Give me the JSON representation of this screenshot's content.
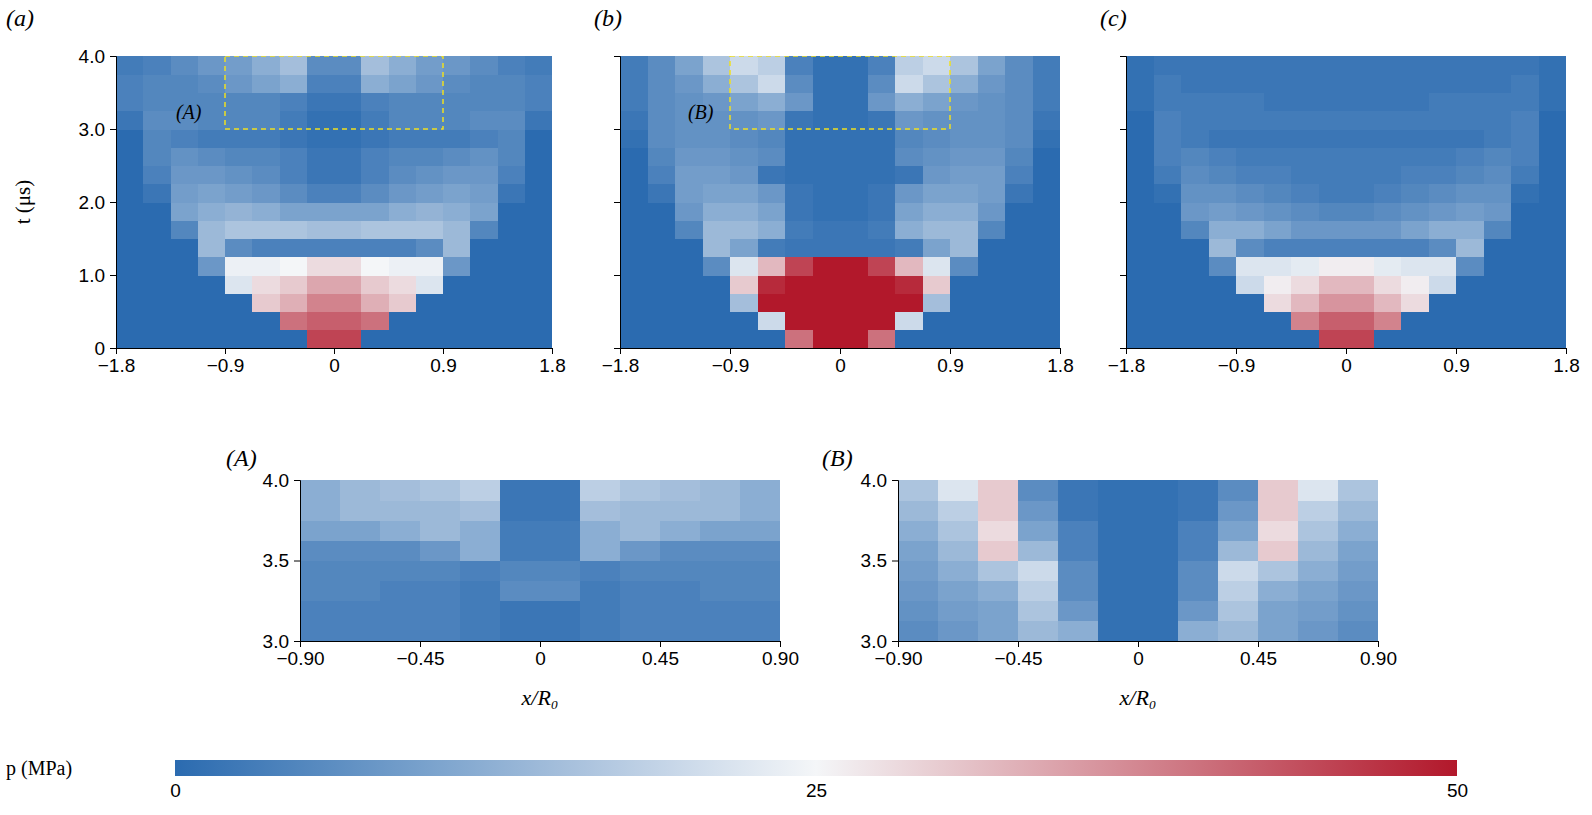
{
  "chart_data": [
    {
      "type": "heatmap",
      "title": "(a)",
      "ylabel": "t (μs)",
      "x_edges": [
        -1.8,
        -1.575,
        -1.35,
        -1.125,
        -0.9,
        -0.675,
        -0.45,
        -0.225,
        0,
        0.225,
        0.45,
        0.675,
        0.9,
        1.125,
        1.35,
        1.575,
        1.8
      ],
      "y_edges": [
        0,
        0.25,
        0.5,
        0.75,
        1.0,
        1.25,
        1.5,
        1.75,
        2.0,
        2.25,
        2.5,
        2.75,
        3.0,
        3.25,
        3.5,
        3.75,
        4.0
      ],
      "values": [
        [
          0,
          0,
          0,
          0,
          0,
          0,
          0,
          45,
          45,
          0,
          0,
          0,
          0,
          0,
          0,
          0
        ],
        [
          0,
          0,
          0,
          0,
          0,
          0,
          40,
          42,
          42,
          40,
          0,
          0,
          0,
          0,
          0,
          0
        ],
        [
          0,
          0,
          0,
          0,
          0,
          30,
          33,
          38,
          38,
          33,
          30,
          0,
          0,
          0,
          0,
          0
        ],
        [
          0,
          0,
          0,
          0,
          22,
          28,
          30,
          34,
          34,
          30,
          28,
          22,
          0,
          0,
          0,
          0
        ],
        [
          0,
          0,
          0,
          8,
          24,
          24,
          25,
          28,
          28,
          25,
          24,
          24,
          8,
          0,
          0,
          0
        ],
        [
          0,
          0,
          0,
          14,
          6,
          4,
          4,
          4,
          4,
          4,
          4,
          6,
          14,
          0,
          0,
          0
        ],
        [
          0,
          0,
          5,
          14,
          16,
          16,
          16,
          15,
          15,
          16,
          16,
          16,
          14,
          5,
          0,
          0
        ],
        [
          0,
          0,
          10,
          12,
          13,
          12,
          10,
          10,
          10,
          10,
          12,
          13,
          12,
          10,
          0,
          0
        ],
        [
          0,
          2,
          9,
          10,
          9,
          8,
          6,
          4,
          4,
          6,
          8,
          9,
          10,
          9,
          2,
          0
        ],
        [
          0,
          4,
          8,
          8,
          7,
          6,
          4,
          2,
          2,
          4,
          6,
          7,
          8,
          8,
          4,
          0
        ],
        [
          0,
          5,
          7,
          6,
          5,
          5,
          4,
          2,
          2,
          4,
          5,
          5,
          6,
          7,
          5,
          0
        ],
        [
          0,
          5,
          4,
          3,
          3,
          3,
          2,
          1,
          1,
          2,
          3,
          3,
          3,
          4,
          5,
          0
        ],
        [
          2,
          6,
          6,
          5,
          5,
          5,
          3,
          1,
          1,
          3,
          5,
          5,
          5,
          6,
          6,
          2
        ],
        [
          4,
          5,
          5,
          5,
          5,
          5,
          4,
          2,
          2,
          4,
          5,
          5,
          5,
          5,
          5,
          4
        ],
        [
          4,
          5,
          5,
          6,
          8,
          10,
          12,
          4,
          4,
          12,
          10,
          8,
          6,
          5,
          5,
          4
        ],
        [
          3,
          4,
          6,
          8,
          9,
          12,
          15,
          6,
          6,
          15,
          12,
          9,
          8,
          6,
          4,
          3
        ]
      ],
      "xlim": [
        -1.8,
        1.8
      ],
      "ylim": [
        0,
        4.0
      ],
      "xticks": [
        {
          "value": -1.8,
          "label": "−1.8"
        },
        {
          "value": -0.9,
          "label": "−0.9"
        },
        0,
        0.9,
        1.8
      ],
      "yticks": [
        0,
        {
          "value": 1,
          "label": "1.0"
        },
        {
          "value": 2,
          "label": "2.0"
        },
        {
          "value": 3,
          "label": "3.0"
        },
        {
          "value": 4,
          "label": "4.0"
        }
      ],
      "annotation": {
        "text": "(A)",
        "x": -1.2,
        "y": 3.2
      },
      "zoom_box": {
        "x": [
          -0.9,
          0.9
        ],
        "y": [
          3.0,
          4.0
        ]
      }
    },
    {
      "type": "heatmap",
      "title": "(b)",
      "tick_labels": "x",
      "x_edges": [
        -1.8,
        -1.575,
        -1.35,
        -1.125,
        -0.9,
        -0.675,
        -0.45,
        -0.225,
        0,
        0.225,
        0.45,
        0.675,
        0.9,
        1.125,
        1.35,
        1.575,
        1.8
      ],
      "y_edges": [
        0,
        0.25,
        0.5,
        0.75,
        1.0,
        1.25,
        1.5,
        1.75,
        2.0,
        2.25,
        2.5,
        2.75,
        3.0,
        3.25,
        3.5,
        3.75,
        4.0
      ],
      "values": [
        [
          0,
          0,
          0,
          0,
          0,
          0,
          40,
          50,
          50,
          40,
          0,
          0,
          0,
          0,
          0,
          0
        ],
        [
          0,
          0,
          0,
          0,
          0,
          20,
          50,
          50,
          50,
          50,
          20,
          0,
          0,
          0,
          0,
          0
        ],
        [
          0,
          0,
          0,
          0,
          15,
          50,
          50,
          50,
          50,
          50,
          50,
          15,
          0,
          0,
          0,
          0
        ],
        [
          0,
          0,
          0,
          0,
          30,
          48,
          50,
          50,
          50,
          50,
          48,
          30,
          0,
          0,
          0,
          0
        ],
        [
          0,
          0,
          0,
          6,
          22,
          32,
          45,
          50,
          50,
          45,
          32,
          22,
          6,
          0,
          0,
          0
        ],
        [
          0,
          0,
          0,
          14,
          10,
          3,
          2,
          2,
          2,
          2,
          3,
          10,
          14,
          0,
          0,
          0
        ],
        [
          0,
          0,
          5,
          14,
          14,
          12,
          3,
          2,
          2,
          3,
          12,
          14,
          14,
          5,
          0,
          0
        ],
        [
          0,
          0,
          8,
          12,
          12,
          10,
          2,
          1,
          1,
          2,
          10,
          12,
          12,
          8,
          0,
          0
        ],
        [
          0,
          2,
          9,
          10,
          10,
          8,
          2,
          1,
          1,
          2,
          8,
          10,
          10,
          9,
          2,
          0
        ],
        [
          0,
          4,
          9,
          9,
          8,
          2,
          1,
          1,
          1,
          1,
          2,
          8,
          9,
          9,
          4,
          0
        ],
        [
          0,
          5,
          8,
          8,
          7,
          6,
          1,
          1,
          1,
          1,
          6,
          7,
          8,
          8,
          5,
          0
        ],
        [
          1,
          6,
          7,
          7,
          6,
          5,
          1,
          1,
          1,
          1,
          5,
          6,
          7,
          7,
          6,
          1
        ],
        [
          2,
          6,
          7,
          7,
          7,
          8,
          2,
          1,
          1,
          2,
          8,
          7,
          7,
          7,
          6,
          2
        ],
        [
          3,
          6,
          7,
          8,
          10,
          12,
          8,
          1,
          1,
          8,
          12,
          10,
          8,
          7,
          6,
          3
        ],
        [
          3,
          6,
          8,
          12,
          16,
          20,
          6,
          1,
          1,
          6,
          20,
          16,
          12,
          8,
          6,
          3
        ],
        [
          3,
          6,
          10,
          16,
          20,
          18,
          4,
          1,
          1,
          4,
          18,
          20,
          16,
          10,
          6,
          3
        ]
      ],
      "xlim": [
        -1.8,
        1.8
      ],
      "ylim": [
        0,
        4.0
      ],
      "xticks": [
        {
          "value": -1.8,
          "label": "−1.8"
        },
        {
          "value": -0.9,
          "label": "−0.9"
        },
        0,
        0.9,
        1.8
      ],
      "yticks": [
        0,
        1,
        2,
        3,
        4
      ],
      "annotation": {
        "text": "(B)",
        "x": -1.14,
        "y": 3.2
      },
      "zoom_box": {
        "x": [
          -0.9,
          0.9
        ],
        "y": [
          3.0,
          4.0
        ]
      }
    },
    {
      "type": "heatmap",
      "title": "(c)",
      "tick_labels": "x",
      "x_edges": [
        -1.8,
        -1.575,
        -1.35,
        -1.125,
        -0.9,
        -0.675,
        -0.45,
        -0.225,
        0,
        0.225,
        0.45,
        0.675,
        0.9,
        1.125,
        1.35,
        1.575,
        1.8
      ],
      "y_edges": [
        0,
        0.25,
        0.5,
        0.75,
        1.0,
        1.25,
        1.5,
        1.75,
        2.0,
        2.25,
        2.5,
        2.75,
        3.0,
        3.25,
        3.5,
        3.75,
        4.0
      ],
      "values": [
        [
          0,
          0,
          0,
          0,
          0,
          0,
          0,
          45,
          45,
          0,
          0,
          0,
          0,
          0,
          0,
          0
        ],
        [
          0,
          0,
          0,
          0,
          0,
          0,
          38,
          42,
          42,
          38,
          0,
          0,
          0,
          0,
          0,
          0
        ],
        [
          0,
          0,
          0,
          0,
          0,
          28,
          32,
          36,
          36,
          32,
          28,
          0,
          0,
          0,
          0,
          0
        ],
        [
          0,
          0,
          0,
          0,
          20,
          26,
          28,
          32,
          32,
          28,
          26,
          20,
          0,
          0,
          0,
          0
        ],
        [
          0,
          0,
          0,
          6,
          22,
          22,
          23,
          26,
          26,
          23,
          22,
          22,
          6,
          0,
          0,
          0
        ],
        [
          0,
          0,
          0,
          14,
          6,
          4,
          4,
          4,
          4,
          4,
          4,
          6,
          14,
          0,
          0,
          0
        ],
        [
          0,
          0,
          5,
          12,
          12,
          10,
          8,
          8,
          8,
          8,
          10,
          12,
          12,
          5,
          0,
          0
        ],
        [
          0,
          0,
          8,
          9,
          8,
          7,
          6,
          5,
          5,
          6,
          7,
          8,
          9,
          8,
          0,
          0
        ],
        [
          0,
          1,
          7,
          7,
          6,
          5,
          4,
          3,
          3,
          4,
          5,
          6,
          7,
          7,
          1,
          0
        ],
        [
          0,
          3,
          6,
          5,
          4,
          4,
          3,
          3,
          3,
          3,
          4,
          4,
          5,
          6,
          3,
          0
        ],
        [
          0,
          4,
          5,
          4,
          3,
          3,
          3,
          3,
          3,
          3,
          3,
          3,
          4,
          5,
          4,
          0
        ],
        [
          0,
          4,
          3,
          2,
          2,
          2,
          2,
          2,
          2,
          2,
          2,
          2,
          2,
          3,
          4,
          0
        ],
        [
          0,
          4,
          3,
          3,
          3,
          3,
          3,
          3,
          3,
          3,
          3,
          3,
          3,
          3,
          4,
          0
        ],
        [
          1,
          3,
          3,
          3,
          3,
          2,
          2,
          2,
          2,
          2,
          2,
          3,
          3,
          3,
          3,
          1
        ],
        [
          1,
          3,
          2,
          2,
          2,
          2,
          2,
          2,
          2,
          2,
          2,
          2,
          2,
          2,
          3,
          1
        ],
        [
          1,
          2,
          2,
          2,
          2,
          2,
          2,
          2,
          2,
          2,
          2,
          2,
          2,
          2,
          2,
          1
        ]
      ],
      "xlim": [
        -1.8,
        1.8
      ],
      "ylim": [
        0,
        4.0
      ],
      "xticks": [
        {
          "value": -1.8,
          "label": "−1.8"
        },
        {
          "value": -0.9,
          "label": "−0.9"
        },
        0,
        0.9,
        1.8
      ],
      "yticks": [
        0,
        1,
        2,
        3,
        4
      ]
    },
    {
      "type": "heatmap",
      "title": "(A)",
      "xlabel": "x/R₀",
      "x_edges": [
        -0.9,
        -0.75,
        -0.6,
        -0.45,
        -0.3,
        -0.15,
        0,
        0.15,
        0.3,
        0.45,
        0.6,
        0.75,
        0.9
      ],
      "y_edges": [
        3.0,
        3.125,
        3.25,
        3.375,
        3.5,
        3.625,
        3.75,
        3.875,
        4.0
      ],
      "values": [
        [
          4,
          4,
          4,
          4,
          3,
          2,
          2,
          3,
          4,
          4,
          4,
          4
        ],
        [
          4,
          4,
          4,
          4,
          3,
          2,
          2,
          3,
          4,
          4,
          4,
          4
        ],
        [
          5,
          5,
          4,
          4,
          3,
          6,
          6,
          3,
          4,
          4,
          5,
          5
        ],
        [
          5,
          5,
          5,
          5,
          4,
          5,
          5,
          4,
          5,
          5,
          5,
          5
        ],
        [
          6,
          6,
          6,
          8,
          12,
          3,
          3,
          12,
          8,
          6,
          6,
          6
        ],
        [
          10,
          10,
          12,
          14,
          12,
          3,
          3,
          12,
          14,
          12,
          10,
          10
        ],
        [
          12,
          14,
          14,
          14,
          15,
          2,
          2,
          15,
          14,
          14,
          14,
          12
        ],
        [
          12,
          14,
          15,
          16,
          18,
          2,
          2,
          18,
          16,
          15,
          14,
          12
        ]
      ],
      "xlim": [
        -0.9,
        0.9
      ],
      "ylim": [
        3.0,
        4.0
      ],
      "xticks": [
        {
          "value": -0.9,
          "label": "−0.90"
        },
        {
          "value": -0.45,
          "label": "−0.45"
        },
        0,
        0.45,
        {
          "value": 0.9,
          "label": "0.90"
        }
      ],
      "yticks": [
        {
          "value": 3,
          "label": "3.0"
        },
        3.5,
        {
          "value": 4,
          "label": "4.0"
        }
      ]
    },
    {
      "type": "heatmap",
      "title": "(B)",
      "xlabel": "x/R₀",
      "x_edges": [
        -0.9,
        -0.75,
        -0.6,
        -0.45,
        -0.3,
        -0.15,
        0,
        0.15,
        0.3,
        0.45,
        0.6,
        0.75,
        0.9
      ],
      "y_edges": [
        3.0,
        3.125,
        3.25,
        3.375,
        3.5,
        3.625,
        3.75,
        3.875,
        4.0
      ],
      "values": [
        [
          6,
          8,
          10,
          14,
          12,
          1,
          1,
          12,
          14,
          10,
          8,
          6
        ],
        [
          7,
          9,
          10,
          16,
          8,
          1,
          1,
          8,
          16,
          10,
          9,
          7
        ],
        [
          8,
          10,
          12,
          18,
          6,
          1,
          1,
          6,
          18,
          12,
          10,
          8
        ],
        [
          9,
          12,
          16,
          20,
          6,
          1,
          1,
          6,
          20,
          16,
          12,
          9
        ],
        [
          10,
          14,
          30,
          14,
          4,
          1,
          1,
          4,
          14,
          30,
          14,
          10
        ],
        [
          12,
          16,
          28,
          10,
          4,
          1,
          1,
          4,
          10,
          28,
          16,
          12
        ],
        [
          14,
          18,
          30,
          8,
          2,
          1,
          1,
          2,
          8,
          30,
          18,
          14
        ],
        [
          16,
          22,
          30,
          6,
          2,
          1,
          1,
          2,
          6,
          30,
          22,
          16
        ]
      ],
      "xlim": [
        -0.9,
        0.9
      ],
      "ylim": [
        3.0,
        4.0
      ],
      "xticks": [
        {
          "value": -0.9,
          "label": "−0.90"
        },
        {
          "value": -0.45,
          "label": "−0.45"
        },
        0,
        0.45,
        {
          "value": 0.9,
          "label": "0.90"
        }
      ],
      "yticks": [
        {
          "value": 3,
          "label": "3.0"
        },
        3.5,
        {
          "value": 4,
          "label": "4.0"
        }
      ]
    }
  ],
  "colorbar": {
    "label": "p (MPa)",
    "range": [
      0,
      50
    ],
    "ticks": [
      0,
      25,
      50
    ]
  }
}
